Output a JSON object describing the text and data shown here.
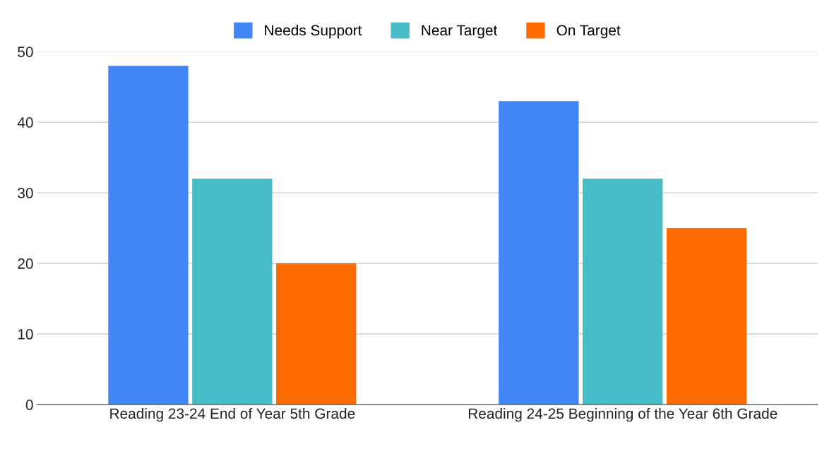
{
  "chart_data": {
    "type": "bar",
    "categories": [
      "Reading 23-24 End of Year 5th Grade",
      "Reading 24-25 Beginning of the Year 6th Grade"
    ],
    "series": [
      {
        "name": "Needs Support",
        "color": "#4285f4",
        "values": [
          48,
          43
        ]
      },
      {
        "name": "Near Target",
        "color": "#46bdc6",
        "values": [
          32,
          32
        ]
      },
      {
        "name": "On Target",
        "color": "#ff6d01",
        "values": [
          20,
          25
        ]
      }
    ],
    "ylim": [
      0,
      50
    ],
    "yticks": [
      0,
      10,
      20,
      30,
      40,
      50
    ],
    "grid": "y",
    "legend": "top"
  }
}
